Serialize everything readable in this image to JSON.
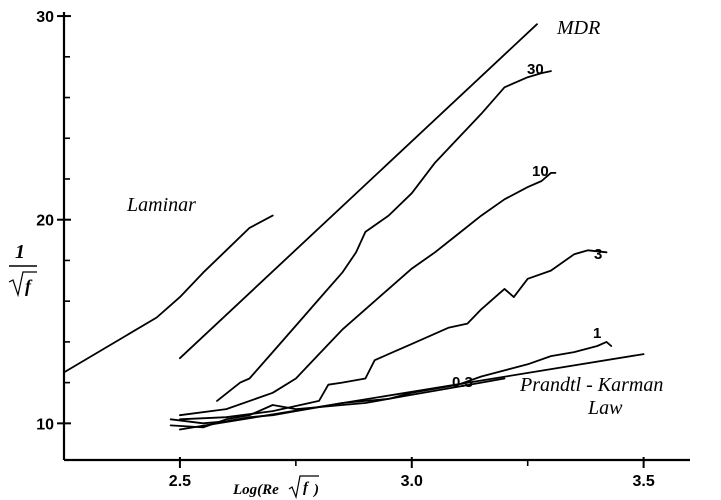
{
  "chart_data": {
    "type": "line",
    "title": "",
    "xlabel": "Log(Re√f)",
    "xlabel_parts": {
      "prefix": "Log(Re",
      "radicand": "f",
      "suffix": " )"
    },
    "ylabel": "1/√f",
    "ylabel_parts": {
      "numerator": "1",
      "radicand": "f"
    },
    "xlim": [
      2.25,
      3.6
    ],
    "ylim": [
      8.2,
      30.2
    ],
    "x_ticks": [
      2.5,
      3.0,
      3.5
    ],
    "x_tick_labels": [
      "2.5",
      "3.0",
      "3.5"
    ],
    "y_ticks": [
      10,
      20,
      30
    ],
    "y_tick_labels": [
      "10",
      "20",
      "30"
    ],
    "grid": false,
    "legend": "none",
    "series": [
      {
        "name": "MDR",
        "label": "MDR",
        "x": [
          2.5,
          3.27
        ],
        "y": [
          13.2,
          29.6
        ]
      },
      {
        "name": "Laminar",
        "label": "Laminar",
        "x": [
          2.25,
          2.45,
          2.5,
          2.55,
          2.6,
          2.65,
          2.7
        ],
        "y": [
          12.5,
          15.2,
          16.2,
          17.4,
          18.5,
          19.6,
          20.2
        ]
      },
      {
        "name": "Prandtl - Karman Law",
        "label_line1": "Prandtl - Karman",
        "label_line2": "Law",
        "x": [
          2.5,
          3.5
        ],
        "y": [
          9.7,
          13.4
        ]
      },
      {
        "name": "30",
        "label": "30",
        "x": [
          2.58,
          2.63,
          2.65,
          2.7,
          2.75,
          2.8,
          2.85,
          2.88,
          2.9,
          2.95,
          3.0,
          3.05,
          3.1,
          3.15,
          3.2,
          3.25,
          3.28,
          3.3
        ],
        "y": [
          11.1,
          12.0,
          12.2,
          13.5,
          14.8,
          16.1,
          17.4,
          18.4,
          19.4,
          20.2,
          21.3,
          22.8,
          24.0,
          25.2,
          26.5,
          27.0,
          27.2,
          27.3
        ]
      },
      {
        "name": "10",
        "label": "10",
        "x": [
          2.5,
          2.6,
          2.7,
          2.75,
          2.8,
          2.85,
          2.9,
          2.95,
          3.0,
          3.05,
          3.1,
          3.15,
          3.2,
          3.25,
          3.28,
          3.3,
          3.31
        ],
        "y": [
          10.4,
          10.7,
          11.5,
          12.2,
          13.4,
          14.6,
          15.6,
          16.6,
          17.6,
          18.4,
          19.3,
          20.2,
          21.0,
          21.6,
          21.9,
          22.3,
          22.3
        ]
      },
      {
        "name": "3",
        "label": "3",
        "x": [
          2.5,
          2.6,
          2.7,
          2.8,
          2.82,
          2.85,
          2.9,
          2.92,
          2.95,
          3.0,
          3.05,
          3.08,
          3.12,
          3.15,
          3.18,
          3.2,
          3.22,
          3.25,
          3.3,
          3.35,
          3.38,
          3.42
        ],
        "y": [
          10.2,
          10.3,
          10.6,
          11.1,
          11.9,
          12.0,
          12.2,
          13.1,
          13.4,
          13.9,
          14.4,
          14.7,
          14.9,
          15.6,
          16.2,
          16.6,
          16.2,
          17.1,
          17.5,
          18.3,
          18.5,
          18.4
        ]
      },
      {
        "name": "1",
        "label": "1",
        "x": [
          2.48,
          2.55,
          2.6,
          2.65,
          2.7,
          2.75,
          2.8,
          2.85,
          2.9,
          2.95,
          3.0,
          3.05,
          3.1,
          3.15,
          3.2,
          3.25,
          3.3,
          3.35,
          3.4,
          3.42,
          3.43
        ],
        "y": [
          9.9,
          9.8,
          10.2,
          10.4,
          10.9,
          10.7,
          10.8,
          11.0,
          11.1,
          11.2,
          11.5,
          11.7,
          11.9,
          12.3,
          12.6,
          12.9,
          13.3,
          13.5,
          13.8,
          14.0,
          13.8
        ]
      },
      {
        "name": "0.3",
        "label": "0.3",
        "x": [
          2.48,
          2.55,
          2.6,
          2.65,
          2.7,
          2.75,
          2.8,
          2.85,
          2.9,
          2.95,
          3.0,
          3.05,
          3.1,
          3.15,
          3.2
        ],
        "y": [
          10.2,
          10.0,
          10.1,
          10.3,
          10.4,
          10.6,
          10.8,
          10.9,
          11.0,
          11.2,
          11.4,
          11.6,
          11.8,
          12.0,
          12.2
        ]
      }
    ]
  }
}
